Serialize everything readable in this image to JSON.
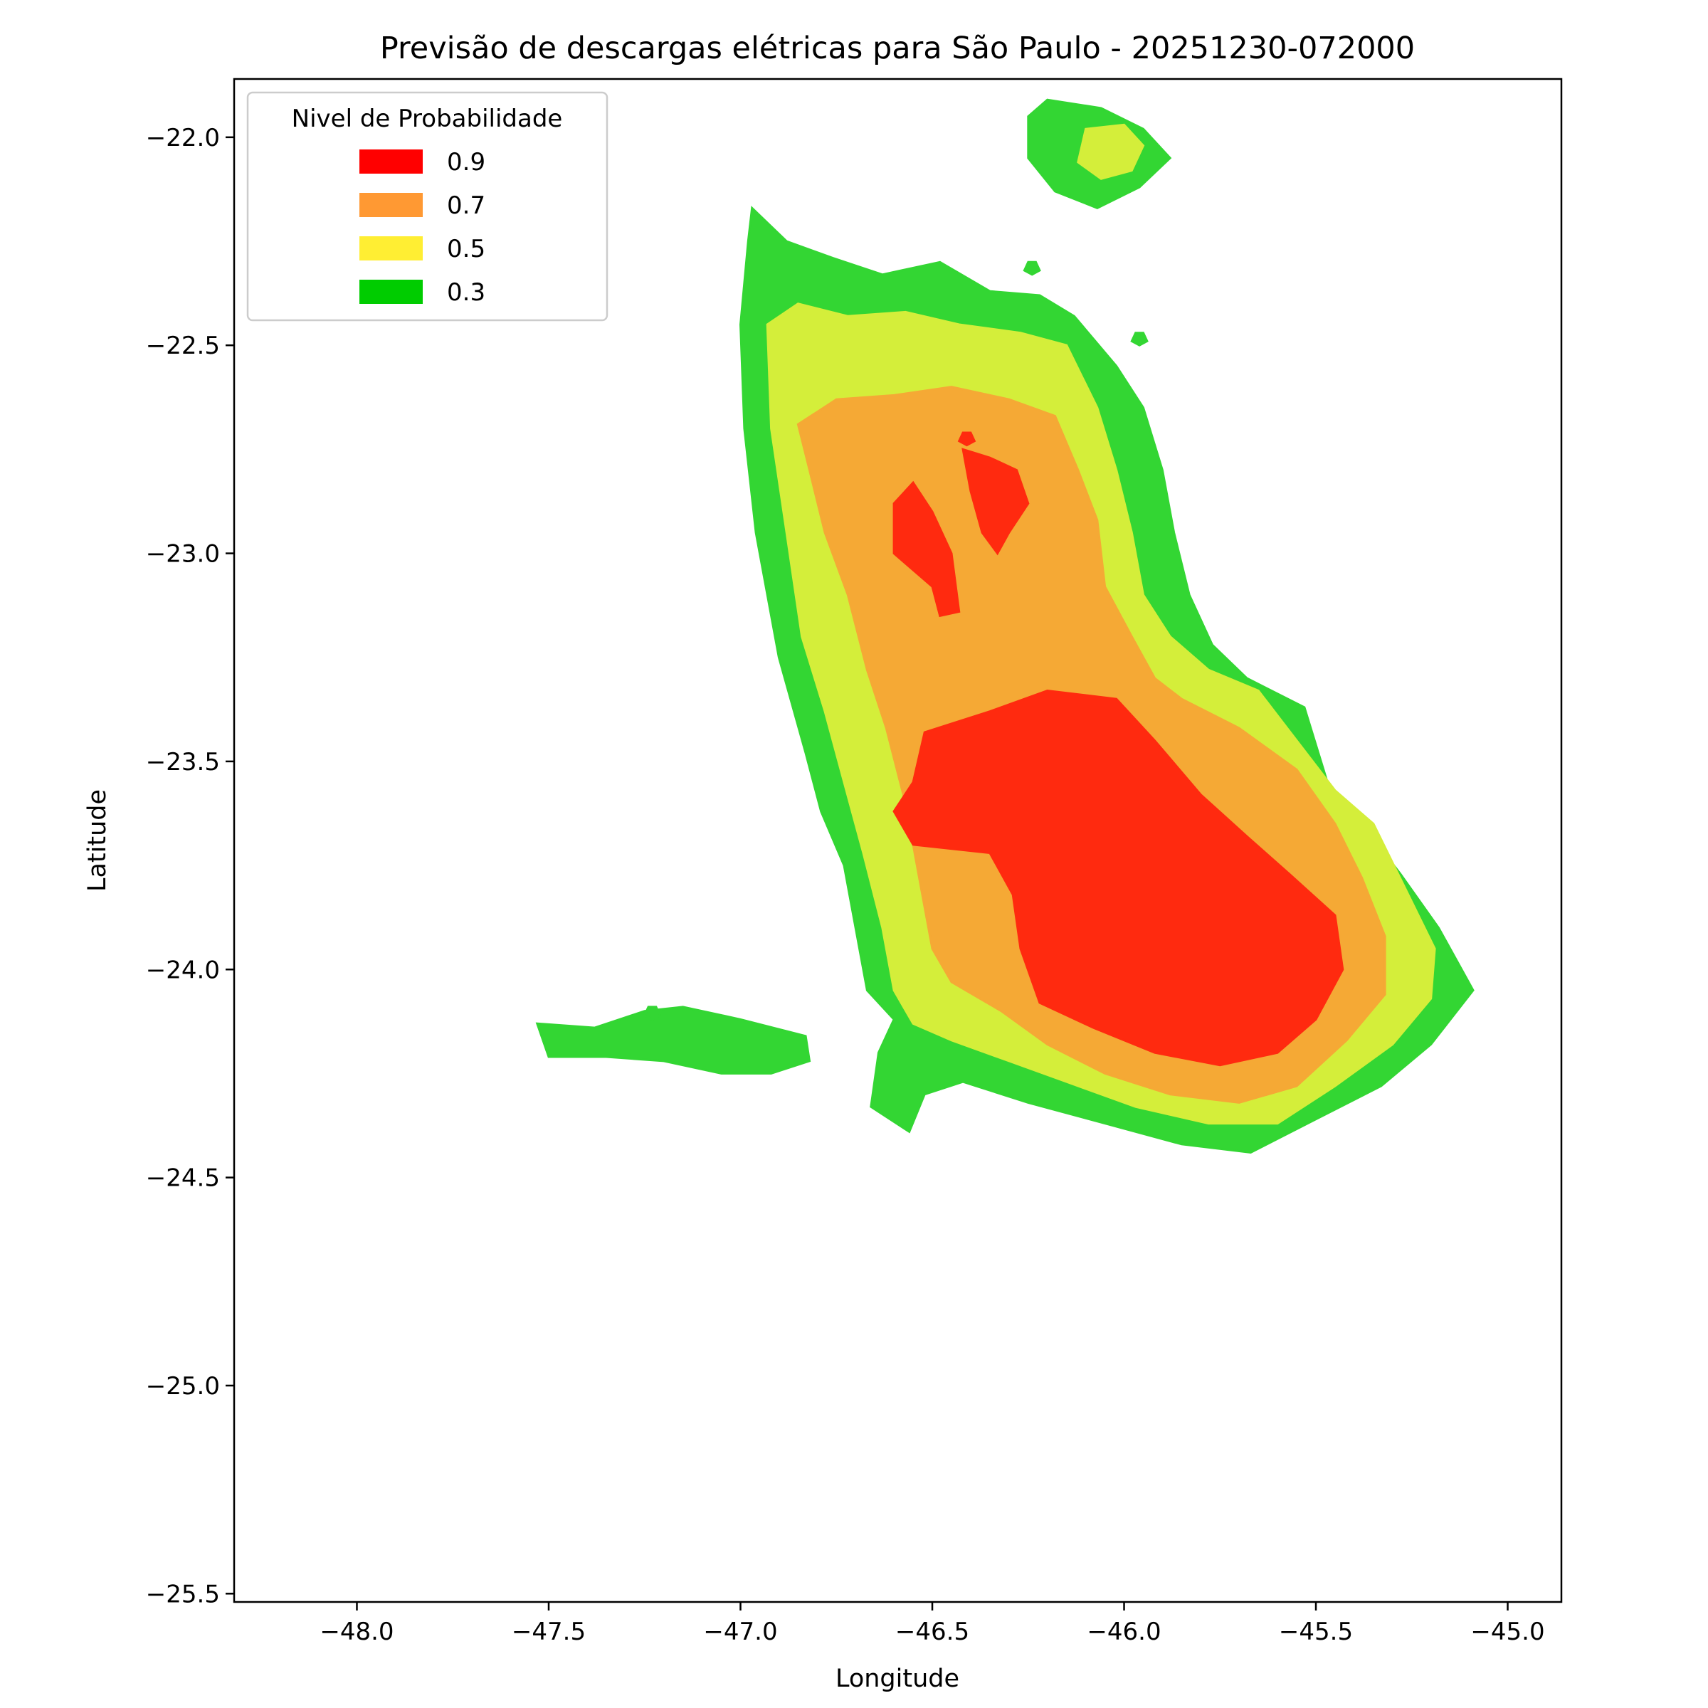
{
  "chart_data": {
    "type": "contour",
    "title": "Previsão de descargas elétricas para São Paulo - 20251230-072000",
    "xlabel": "Longitude",
    "ylabel": "Latitude",
    "xlim": [
      -48.32,
      -44.86
    ],
    "ylim": [
      -25.52,
      -21.86
    ],
    "xticks": [
      -48.0,
      -47.5,
      -47.0,
      -46.5,
      -46.0,
      -45.5,
      -45.0
    ],
    "xtick_labels": [
      "−48.0",
      "−47.5",
      "−47.0",
      "−46.5",
      "−46.0",
      "−45.5",
      "−45.0"
    ],
    "yticks": [
      -22.0,
      -22.5,
      -23.0,
      -23.5,
      -24.0,
      -24.5,
      -25.0,
      -25.5
    ],
    "ytick_labels": [
      "−22.0",
      "−22.5",
      "−23.0",
      "−23.5",
      "−24.0",
      "−24.5",
      "−25.0",
      "−25.5"
    ],
    "grid": false,
    "legend": {
      "title": "Nivel de Probabilidade",
      "placement": "top-left",
      "entries": [
        {
          "label": "0.9",
          "color": "#ff0000"
        },
        {
          "label": "0.7",
          "color": "#ff9933"
        },
        {
          "label": "0.5",
          "color": "#ffee33"
        },
        {
          "label": "0.3",
          "color": "#00cc00"
        }
      ]
    },
    "levels": [
      {
        "level": 0.3,
        "color": "#33d633",
        "regions": [
          {
            "name": "main",
            "points": [
              [
                -46.97,
                -22.17
              ],
              [
                -46.88,
                -22.25
              ],
              [
                -46.76,
                -22.29
              ],
              [
                -46.63,
                -22.33
              ],
              [
                -46.48,
                -22.3
              ],
              [
                -46.35,
                -22.37
              ],
              [
                -46.22,
                -22.38
              ],
              [
                -46.13,
                -22.43
              ],
              [
                -46.02,
                -22.55
              ],
              [
                -45.95,
                -22.65
              ],
              [
                -45.9,
                -22.8
              ],
              [
                -45.87,
                -22.95
              ],
              [
                -45.83,
                -23.1
              ],
              [
                -45.77,
                -23.22
              ],
              [
                -45.68,
                -23.3
              ],
              [
                -45.53,
                -23.37
              ],
              [
                -45.47,
                -23.55
              ],
              [
                -45.38,
                -23.65
              ],
              [
                -45.28,
                -23.77
              ],
              [
                -45.18,
                -23.9
              ],
              [
                -45.09,
                -24.05
              ],
              [
                -45.2,
                -24.18
              ],
              [
                -45.33,
                -24.28
              ],
              [
                -45.5,
                -24.36
              ],
              [
                -45.67,
                -24.44
              ],
              [
                -45.85,
                -24.42
              ],
              [
                -46.05,
                -24.37
              ],
              [
                -46.25,
                -24.32
              ],
              [
                -46.42,
                -24.27
              ],
              [
                -46.52,
                -24.3
              ],
              [
                -46.56,
                -24.39
              ],
              [
                -46.66,
                -24.33
              ],
              [
                -46.64,
                -24.2
              ],
              [
                -46.6,
                -24.12
              ],
              [
                -46.67,
                -24.05
              ],
              [
                -46.73,
                -23.75
              ],
              [
                -46.79,
                -23.62
              ],
              [
                -46.83,
                -23.48
              ],
              [
                -46.9,
                -23.25
              ],
              [
                -46.96,
                -22.95
              ],
              [
                -46.99,
                -22.7
              ],
              [
                -47.0,
                -22.45
              ],
              [
                -46.98,
                -22.25
              ]
            ]
          },
          {
            "name": "north-isle",
            "points": [
              [
                -46.25,
                -21.95
              ],
              [
                -46.2,
                -21.91
              ],
              [
                -46.06,
                -21.93
              ],
              [
                -45.95,
                -21.98
              ],
              [
                -45.88,
                -22.05
              ],
              [
                -45.96,
                -22.12
              ],
              [
                -46.07,
                -22.17
              ],
              [
                -46.18,
                -22.13
              ],
              [
                -46.25,
                -22.05
              ]
            ]
          },
          {
            "name": "west-strip",
            "points": [
              [
                -47.53,
                -24.13
              ],
              [
                -47.38,
                -24.14
              ],
              [
                -47.25,
                -24.1
              ],
              [
                -47.15,
                -24.09
              ],
              [
                -47.0,
                -24.12
              ],
              [
                -46.83,
                -24.16
              ],
              [
                -46.82,
                -24.22
              ],
              [
                -46.92,
                -24.25
              ],
              [
                -47.05,
                -24.25
              ],
              [
                -47.2,
                -24.22
              ],
              [
                -47.35,
                -24.21
              ],
              [
                -47.5,
                -24.21
              ]
            ]
          },
          {
            "name": "dot-1",
            "points": [
              [
                -46.25,
                -22.3
              ],
              [
                -46.23,
                -22.3
              ],
              [
                -46.22,
                -22.32
              ],
              [
                -46.24,
                -22.33
              ],
              [
                -46.26,
                -22.32
              ]
            ]
          },
          {
            "name": "dot-2",
            "points": [
              [
                -45.97,
                -22.47
              ],
              [
                -45.95,
                -22.47
              ],
              [
                -45.94,
                -22.49
              ],
              [
                -45.96,
                -22.5
              ],
              [
                -45.98,
                -22.49
              ]
            ]
          },
          {
            "name": "dot-3",
            "points": [
              [
                -47.24,
                -24.09
              ],
              [
                -47.22,
                -24.09
              ],
              [
                -47.21,
                -24.11
              ],
              [
                -47.23,
                -24.12
              ],
              [
                -47.25,
                -24.11
              ]
            ]
          }
        ]
      },
      {
        "level": 0.5,
        "color": "#d4ee3a",
        "regions": [
          {
            "name": "main",
            "points": [
              [
                -46.93,
                -22.45
              ],
              [
                -46.85,
                -22.4
              ],
              [
                -46.72,
                -22.43
              ],
              [
                -46.57,
                -22.42
              ],
              [
                -46.43,
                -22.45
              ],
              [
                -46.27,
                -22.47
              ],
              [
                -46.15,
                -22.5
              ],
              [
                -46.07,
                -22.65
              ],
              [
                -46.02,
                -22.8
              ],
              [
                -45.98,
                -22.95
              ],
              [
                -45.95,
                -23.1
              ],
              [
                -45.88,
                -23.2
              ],
              [
                -45.78,
                -23.28
              ],
              [
                -45.65,
                -23.33
              ],
              [
                -45.55,
                -23.45
              ],
              [
                -45.45,
                -23.57
              ],
              [
                -45.35,
                -23.65
              ],
              [
                -45.27,
                -23.8
              ],
              [
                -45.19,
                -23.95
              ],
              [
                -45.2,
                -24.07
              ],
              [
                -45.3,
                -24.18
              ],
              [
                -45.45,
                -24.28
              ],
              [
                -45.6,
                -24.37
              ],
              [
                -45.78,
                -24.37
              ],
              [
                -45.97,
                -24.33
              ],
              [
                -46.15,
                -24.27
              ],
              [
                -46.3,
                -24.22
              ],
              [
                -46.45,
                -24.17
              ],
              [
                -46.55,
                -24.13
              ],
              [
                -46.6,
                -24.05
              ],
              [
                -46.63,
                -23.9
              ],
              [
                -46.68,
                -23.72
              ],
              [
                -46.73,
                -23.55
              ],
              [
                -46.78,
                -23.38
              ],
              [
                -46.84,
                -23.2
              ],
              [
                -46.88,
                -22.95
              ],
              [
                -46.92,
                -22.7
              ]
            ]
          },
          {
            "name": "north-isle",
            "points": [
              [
                -46.1,
                -21.98
              ],
              [
                -46.0,
                -21.97
              ],
              [
                -45.95,
                -22.02
              ],
              [
                -45.98,
                -22.08
              ],
              [
                -46.06,
                -22.1
              ],
              [
                -46.12,
                -22.06
              ]
            ]
          }
        ]
      },
      {
        "level": 0.7,
        "color": "#f5a935",
        "regions": [
          {
            "name": "main",
            "points": [
              [
                -46.85,
                -22.69
              ],
              [
                -46.75,
                -22.63
              ],
              [
                -46.6,
                -22.62
              ],
              [
                -46.45,
                -22.6
              ],
              [
                -46.3,
                -22.63
              ],
              [
                -46.18,
                -22.67
              ],
              [
                -46.12,
                -22.8
              ],
              [
                -46.07,
                -22.92
              ],
              [
                -46.05,
                -23.08
              ],
              [
                -45.98,
                -23.2
              ],
              [
                -45.92,
                -23.3
              ],
              [
                -45.85,
                -23.35
              ],
              [
                -45.7,
                -23.42
              ],
              [
                -45.55,
                -23.52
              ],
              [
                -45.45,
                -23.65
              ],
              [
                -45.38,
                -23.78
              ],
              [
                -45.32,
                -23.92
              ],
              [
                -45.32,
                -24.06
              ],
              [
                -45.42,
                -24.17
              ],
              [
                -45.55,
                -24.28
              ],
              [
                -45.7,
                -24.32
              ],
              [
                -45.88,
                -24.3
              ],
              [
                -46.05,
                -24.25
              ],
              [
                -46.2,
                -24.18
              ],
              [
                -46.32,
                -24.1
              ],
              [
                -46.45,
                -24.03
              ],
              [
                -46.5,
                -23.95
              ],
              [
                -46.53,
                -23.8
              ],
              [
                -46.57,
                -23.6
              ],
              [
                -46.62,
                -23.42
              ],
              [
                -46.67,
                -23.28
              ],
              [
                -46.72,
                -23.1
              ],
              [
                -46.78,
                -22.95
              ],
              [
                -46.82,
                -22.8
              ]
            ]
          }
        ]
      },
      {
        "level": 0.9,
        "color": "#ff2a0f",
        "regions": [
          {
            "name": "main",
            "points": [
              [
                -46.52,
                -23.43
              ],
              [
                -46.35,
                -23.38
              ],
              [
                -46.2,
                -23.33
              ],
              [
                -46.02,
                -23.35
              ],
              [
                -45.92,
                -23.45
              ],
              [
                -45.8,
                -23.58
              ],
              [
                -45.68,
                -23.68
              ],
              [
                -45.57,
                -23.77
              ],
              [
                -45.45,
                -23.87
              ],
              [
                -45.43,
                -24.0
              ],
              [
                -45.5,
                -24.12
              ],
              [
                -45.6,
                -24.2
              ],
              [
                -45.75,
                -24.23
              ],
              [
                -45.92,
                -24.2
              ],
              [
                -46.08,
                -24.14
              ],
              [
                -46.22,
                -24.08
              ],
              [
                -46.27,
                -23.95
              ],
              [
                -46.29,
                -23.82
              ],
              [
                -46.35,
                -23.72
              ],
              [
                -46.55,
                -23.7
              ],
              [
                -46.6,
                -23.62
              ],
              [
                -46.55,
                -23.55
              ]
            ]
          },
          {
            "name": "north-blob",
            "points": [
              [
                -46.55,
                -22.83
              ],
              [
                -46.6,
                -22.88
              ],
              [
                -46.6,
                -23.0
              ],
              [
                -46.5,
                -23.08
              ],
              [
                -46.48,
                -23.15
              ],
              [
                -46.43,
                -23.14
              ],
              [
                -46.45,
                -23.0
              ],
              [
                -46.5,
                -22.9
              ]
            ]
          },
          {
            "name": "ne-blob",
            "points": [
              [
                -46.42,
                -22.75
              ],
              [
                -46.35,
                -22.77
              ],
              [
                -46.28,
                -22.8
              ],
              [
                -46.25,
                -22.88
              ],
              [
                -46.3,
                -22.95
              ],
              [
                -46.33,
                -23.0
              ],
              [
                -46.37,
                -22.95
              ],
              [
                -46.4,
                -22.85
              ]
            ]
          },
          {
            "name": "dot",
            "points": [
              [
                -46.42,
                -22.71
              ],
              [
                -46.4,
                -22.71
              ],
              [
                -46.39,
                -22.73
              ],
              [
                -46.41,
                -22.74
              ],
              [
                -46.43,
                -22.73
              ]
            ]
          }
        ]
      }
    ]
  }
}
